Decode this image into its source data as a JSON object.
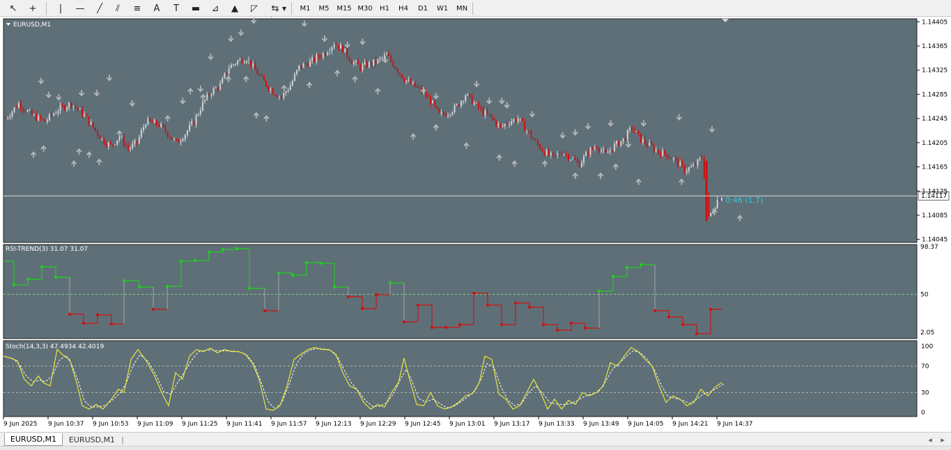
{
  "toolbar": {
    "tools": [
      {
        "name": "cursor-icon",
        "glyph": "↖"
      },
      {
        "name": "crosshair-icon",
        "glyph": "+"
      },
      {
        "name": "vertical-line-icon",
        "glyph": "|"
      },
      {
        "name": "horizontal-line-icon",
        "glyph": "—"
      },
      {
        "name": "trendline-icon",
        "glyph": "╱"
      },
      {
        "name": "equidistant-channel-icon",
        "glyph": "⫽"
      },
      {
        "name": "fibonacci-icon",
        "glyph": "≡"
      },
      {
        "name": "text-icon",
        "glyph": "A"
      },
      {
        "name": "text-label-icon",
        "glyph": "T"
      },
      {
        "name": "rectangle-icon",
        "glyph": "▬"
      },
      {
        "name": "arrow-label-icon",
        "glyph": "⊿"
      },
      {
        "name": "triangle-icon",
        "glyph": "▲"
      },
      {
        "name": "fibo-fan-icon",
        "glyph": "◸"
      },
      {
        "name": "shapes-menu-icon",
        "glyph": "⇆"
      }
    ],
    "timeframes": [
      "M1",
      "M5",
      "M15",
      "M30",
      "H1",
      "H4",
      "D1",
      "W1",
      "MN"
    ]
  },
  "main_chart": {
    "symbol_label": "EURUSD,M1",
    "price_ticks": [
      "1.14405",
      "1.14365",
      "1.14325",
      "1.14285",
      "1.14245",
      "1.14205",
      "1.14165",
      "1.14125",
      "1.14085",
      "1.14045"
    ],
    "current_price": "1.14117",
    "countdown": "0:46 (1.7)",
    "colors": {
      "background": "#5f6f77",
      "bull": "#d0d4d6",
      "bear": "#cc1111",
      "accent": "#38c7d8",
      "arrow": "#b4b8ba"
    }
  },
  "rsi_panel": {
    "label": "RSI-TREND(3) 31.07 31.07",
    "ticks": [
      "98.37",
      "50",
      "2.05"
    ],
    "colors": {
      "up": "#1ed01e",
      "down": "#d01010",
      "level": "#7fd87f"
    }
  },
  "stoch_panel": {
    "label": "Stoch(14,3,3) 47.4934 42.4019",
    "ticks": [
      "100",
      "70",
      "30",
      "0"
    ],
    "colors": {
      "main": "#e8e83a",
      "signal": "#ffffff"
    }
  },
  "time_axis": {
    "labels": [
      "9 Jun 2025",
      "9 Jun 10:37",
      "9 Jun 10:53",
      "9 Jun 11:09",
      "9 Jun 11:25",
      "9 Jun 11:41",
      "9 Jun 11:57",
      "9 Jun 12:13",
      "9 Jun 12:29",
      "9 Jun 12:45",
      "9 Jun 13:01",
      "9 Jun 13:17",
      "9 Jun 13:33",
      "9 Jun 13:49",
      "9 Jun 14:05",
      "9 Jun 14:21",
      "9 Jun 14:37"
    ]
  },
  "tabs": {
    "items": [
      "EURUSD,M1",
      "EURUSD,M1"
    ],
    "active": 0
  },
  "chart_data": {
    "type": "candlestick",
    "symbol": "EURUSD",
    "timeframe": "M1",
    "close_path": [
      [
        0,
        1.14245
      ],
      [
        6,
        1.1427
      ],
      [
        12,
        1.1425
      ],
      [
        18,
        1.1424
      ],
      [
        24,
        1.1426
      ],
      [
        30,
        1.1427
      ],
      [
        36,
        1.1425
      ],
      [
        40,
        1.1423
      ],
      [
        44,
        1.1421
      ],
      [
        48,
        1.142
      ],
      [
        52,
        1.14215
      ],
      [
        56,
        1.14195
      ],
      [
        60,
        1.14205
      ],
      [
        64,
        1.1424
      ],
      [
        70,
        1.14235
      ],
      [
        74,
        1.1422
      ],
      [
        78,
        1.14205
      ],
      [
        82,
        1.1422
      ],
      [
        86,
        1.1424
      ],
      [
        90,
        1.1427
      ],
      [
        94,
        1.1429
      ],
      [
        98,
        1.143
      ],
      [
        102,
        1.1433
      ],
      [
        106,
        1.1434
      ],
      [
        110,
        1.14345
      ],
      [
        114,
        1.14325
      ],
      [
        118,
        1.14305
      ],
      [
        122,
        1.1429
      ],
      [
        126,
        1.1428
      ],
      [
        130,
        1.143
      ],
      [
        134,
        1.1433
      ],
      [
        140,
        1.1434
      ],
      [
        146,
        1.14355
      ],
      [
        150,
        1.1437
      ],
      [
        154,
        1.1436
      ],
      [
        158,
        1.1434
      ],
      [
        162,
        1.1433
      ],
      [
        166,
        1.14335
      ],
      [
        170,
        1.1434
      ],
      [
        174,
        1.1435
      ],
      [
        178,
        1.1433
      ],
      [
        182,
        1.1431
      ],
      [
        186,
        1.143
      ],
      [
        190,
        1.1429
      ],
      [
        194,
        1.14275
      ],
      [
        198,
        1.1425
      ],
      [
        202,
        1.14255
      ],
      [
        206,
        1.14265
      ],
      [
        210,
        1.14285
      ],
      [
        214,
        1.1427
      ],
      [
        218,
        1.14255
      ],
      [
        222,
        1.14245
      ],
      [
        226,
        1.1423
      ],
      [
        230,
        1.1424
      ],
      [
        234,
        1.14245
      ],
      [
        238,
        1.14225
      ],
      [
        242,
        1.14205
      ],
      [
        246,
        1.1419
      ],
      [
        250,
        1.1418
      ],
      [
        254,
        1.1419
      ],
      [
        258,
        1.1418
      ],
      [
        262,
        1.1417
      ],
      [
        266,
        1.1419
      ],
      [
        270,
        1.142
      ],
      [
        274,
        1.14185
      ],
      [
        278,
        1.142
      ],
      [
        282,
        1.1421
      ],
      [
        286,
        1.1423
      ],
      [
        290,
        1.1421
      ],
      [
        294,
        1.142
      ],
      [
        298,
        1.1419
      ],
      [
        302,
        1.14185
      ],
      [
        306,
        1.14175
      ],
      [
        310,
        1.1416
      ],
      [
        314,
        1.14165
      ],
      [
        318,
        1.1418
      ],
      [
        320,
        1.1412
      ],
      [
        321,
        1.1408
      ],
      [
        323,
        1.14095
      ],
      [
        325,
        1.1411
      ],
      [
        327,
        1.14117
      ]
    ],
    "rsi_trend": [
      98.37,
      50,
      2.05
    ],
    "stoch": {
      "main": 47.4934,
      "signal": 42.4019,
      "levels": [
        30,
        70
      ]
    },
    "time_labels_every_minutes": 16
  }
}
